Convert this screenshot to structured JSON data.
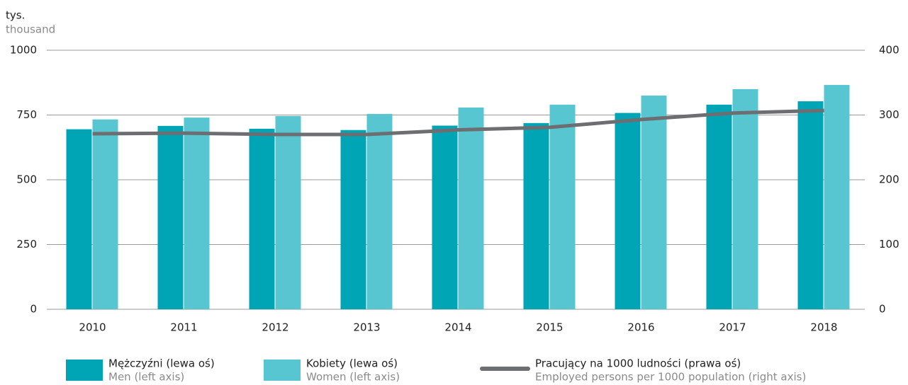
{
  "chart_data": {
    "type": "bar_line",
    "unit_label": "tys.",
    "unit_label_en": "thousand",
    "categories": [
      "2010",
      "2011",
      "2012",
      "2013",
      "2014",
      "2015",
      "2016",
      "2017",
      "2018"
    ],
    "series": [
      {
        "name": "Mężczyźni (lewa oś)",
        "name_en": "Men (left axis)",
        "color": "#00a5b5",
        "type": "bar",
        "values": [
          695,
          708,
          697,
          692,
          709,
          719,
          758,
          790,
          803
        ]
      },
      {
        "name": "Kobiety (lewa oś)",
        "name_en": "Women (left axis)",
        "color": "#57c6d1",
        "type": "bar",
        "values": [
          733,
          740,
          746,
          754,
          779,
          790,
          825,
          850,
          866
        ]
      },
      {
        "name": "Pracujący na 1000 ludności (prawa oś)",
        "name_en": "Employed persons per 1000 population (right axis)",
        "color": "#6d6e71",
        "type": "line",
        "axis": "y2",
        "values": [
          271,
          272,
          270,
          270,
          277,
          281,
          293,
          303,
          307
        ]
      }
    ],
    "ylim": [
      0,
      1000
    ],
    "yticks": [
      0,
      250,
      500,
      750,
      1000
    ],
    "y2lim": [
      0,
      400
    ],
    "y2ticks": [
      0,
      100,
      200,
      300,
      400
    ],
    "grid": true
  }
}
